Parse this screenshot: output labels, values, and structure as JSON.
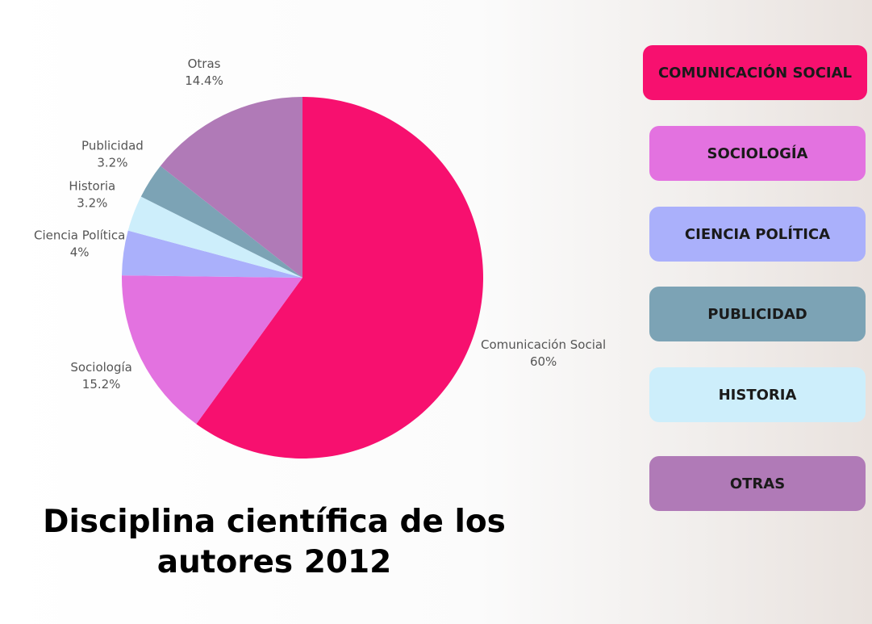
{
  "chart_data": {
    "type": "pie",
    "title": "Disciplina científica de los autores 2012",
    "categories": [
      "Comunicación Social",
      "Sociología",
      "Ciencia Política",
      "Historia",
      "Publicidad",
      "Otras"
    ],
    "values": [
      60,
      15.2,
      4,
      3.2,
      3.2,
      14.4
    ],
    "value_labels": [
      "60%",
      "15.2%",
      "4%",
      "3.2%",
      "3.2%",
      "14.4%"
    ],
    "colors": [
      "#f7106f",
      "#e372e0",
      "#aab0fb",
      "#cdeefb",
      "#7ca3b5",
      "#b07ab7"
    ],
    "legend": [
      {
        "label": "COMUNICACIÓN SOCIAL",
        "color": "#f7106f"
      },
      {
        "label": "SOCIOLOGÍA",
        "color": "#e372e0"
      },
      {
        "label": "CIENCIA POLÍTICA",
        "color": "#aab0fb"
      },
      {
        "label": "PUBLICIDAD",
        "color": "#7ca3b5"
      },
      {
        "label": "HISTORIA",
        "color": "#cdeefb"
      },
      {
        "label": "OTRAS",
        "color": "#b07ab7"
      }
    ]
  }
}
